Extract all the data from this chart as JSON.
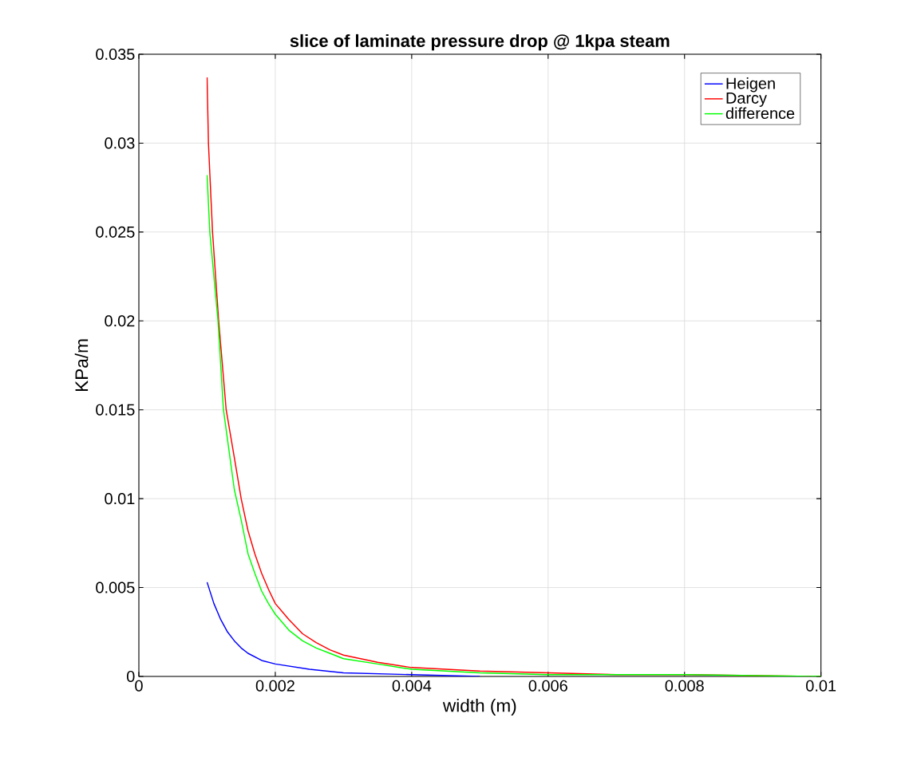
{
  "chart_data": {
    "type": "line",
    "title": "slice of laminate pressure drop @ 1kpa steam",
    "xlabel": "width (m)",
    "ylabel": "KPa/m",
    "xlim": [
      0,
      0.01
    ],
    "ylim": [
      0,
      0.035
    ],
    "xticks": [
      0,
      0.002,
      0.004,
      0.006,
      0.008,
      0.01
    ],
    "yticks": [
      0,
      0.005,
      0.01,
      0.015,
      0.02,
      0.025,
      0.03,
      0.035
    ],
    "grid": true,
    "legend": "top right",
    "marker": "none",
    "line_style": "solid",
    "series": [
      {
        "name": "Heigen",
        "color": "#0000ff",
        "x": [
          0.001,
          0.0011,
          0.0012,
          0.0013,
          0.0014,
          0.0015,
          0.0016,
          0.0018,
          0.002,
          0.0025,
          0.003,
          0.004,
          0.005
        ],
        "values": [
          0.0053,
          0.0041,
          0.0032,
          0.0025,
          0.002,
          0.0016,
          0.0013,
          0.0009,
          0.0007,
          0.0004,
          0.0002,
          0.0001,
          0.0
        ]
      },
      {
        "name": "Darcy",
        "color": "#ff0000",
        "x": [
          0.001,
          0.00102,
          0.00108,
          0.00117,
          0.00128,
          0.0014,
          0.0015,
          0.0016,
          0.0017,
          0.0018,
          0.0019,
          0.002,
          0.0022,
          0.0024,
          0.0026,
          0.0028,
          0.003,
          0.0035,
          0.004,
          0.0045,
          0.005,
          0.006,
          0.007,
          0.008,
          0.01
        ],
        "values": [
          0.0337,
          0.03,
          0.025,
          0.02,
          0.015,
          0.0123,
          0.01,
          0.0082,
          0.0069,
          0.0058,
          0.0049,
          0.0041,
          0.0032,
          0.0024,
          0.0019,
          0.0015,
          0.0012,
          0.0008,
          0.0005,
          0.0004,
          0.0003,
          0.0002,
          0.0001,
          0.0001,
          0.0
        ]
      },
      {
        "name": "difference",
        "color": "#00ff00",
        "x": [
          0.001,
          0.00104,
          0.00116,
          0.00124,
          0.0014,
          0.0015,
          0.0016,
          0.0017,
          0.0018,
          0.0019,
          0.002,
          0.0022,
          0.0024,
          0.0026,
          0.0028,
          0.003,
          0.0035,
          0.004,
          0.0045,
          0.005,
          0.006,
          0.007,
          0.008,
          0.01
        ],
        "values": [
          0.0282,
          0.025,
          0.02,
          0.015,
          0.0105,
          0.0088,
          0.0069,
          0.0058,
          0.0048,
          0.0041,
          0.0035,
          0.0026,
          0.002,
          0.0016,
          0.0013,
          0.001,
          0.0007,
          0.0004,
          0.0003,
          0.0002,
          0.0001,
          0.0001,
          0.0001,
          0.0
        ]
      }
    ]
  }
}
